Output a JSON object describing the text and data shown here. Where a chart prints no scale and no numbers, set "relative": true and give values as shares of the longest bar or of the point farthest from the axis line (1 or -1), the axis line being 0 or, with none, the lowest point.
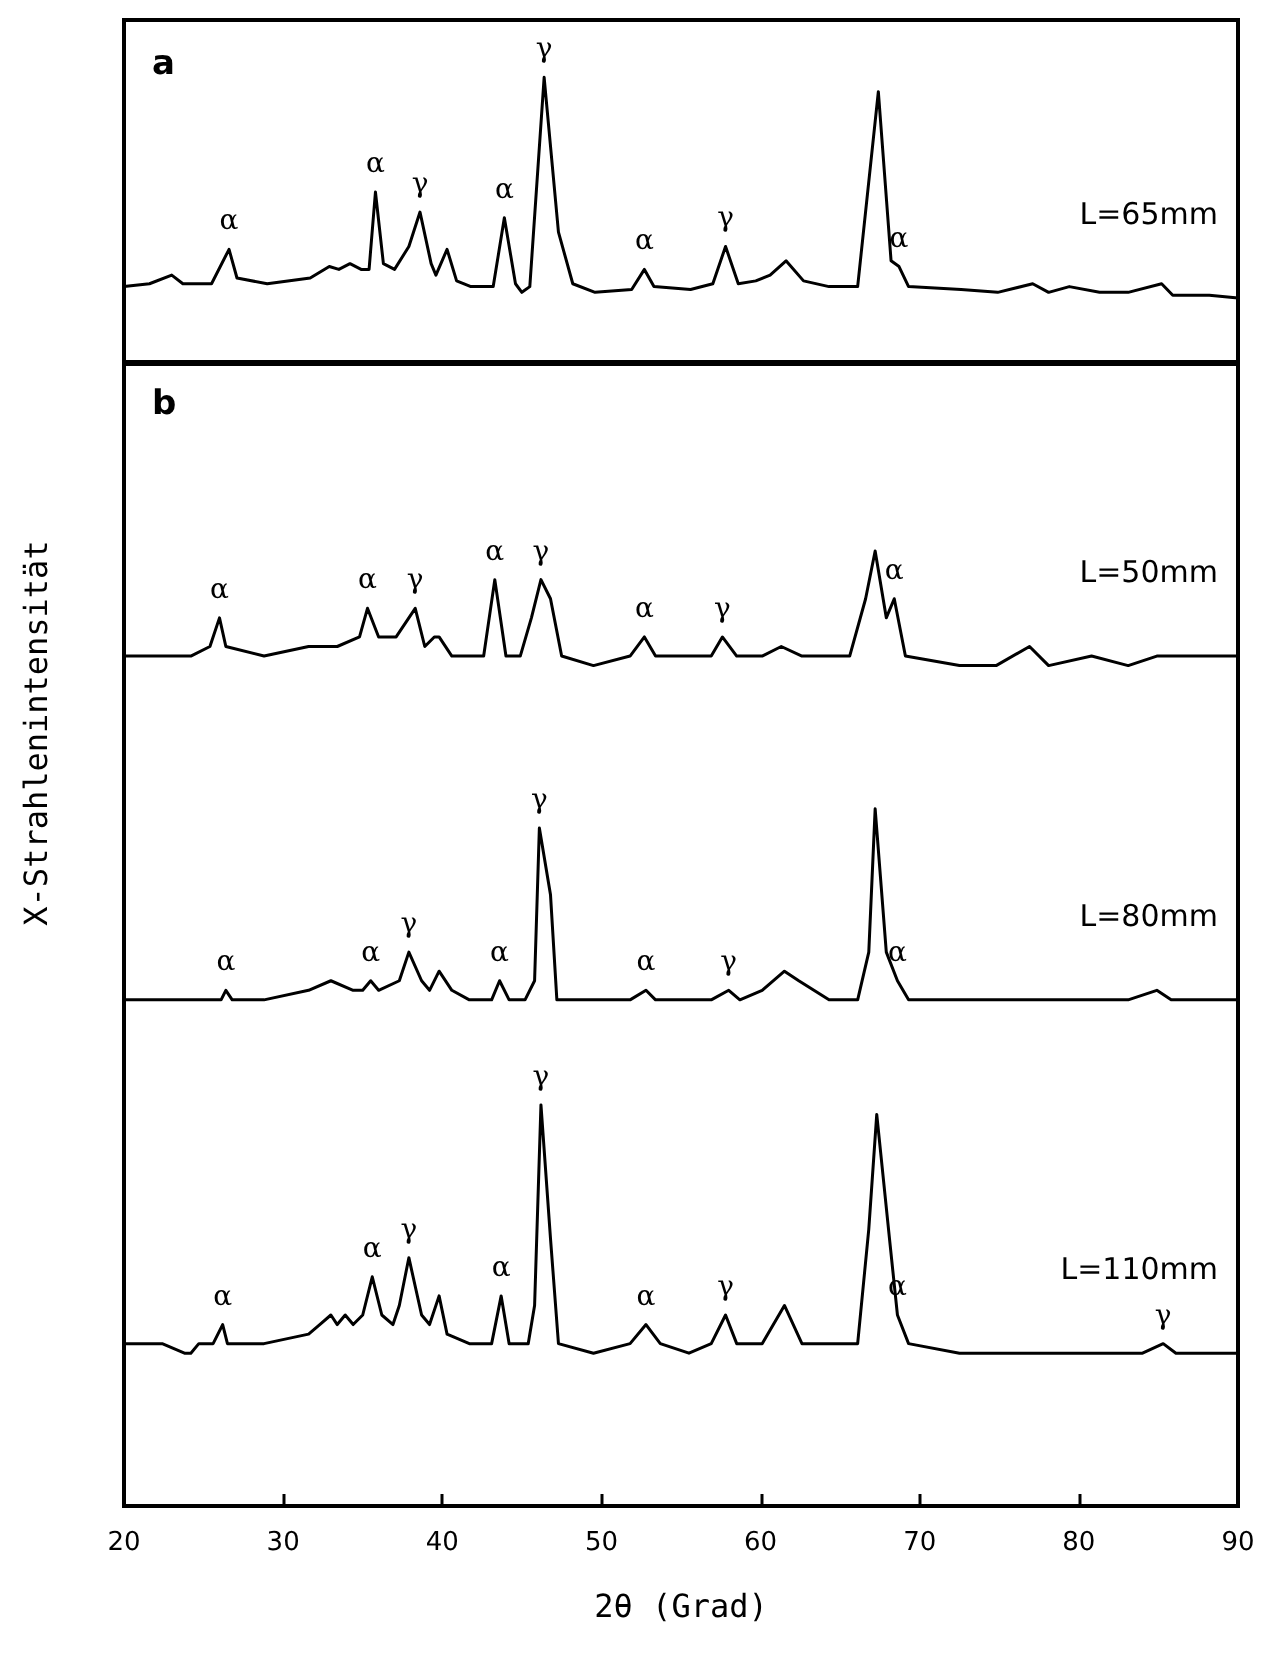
{
  "chart_data": [
    {
      "type": "line",
      "relative": true,
      "xlim": [
        20,
        90
      ],
      "tick_labels": false,
      "grid": false,
      "marker": "none",
      "line_style": "solid",
      "annotations": [
        "a",
        {
          "text": "α",
          "x": 26.6,
          "y": 0.4
        },
        {
          "text": "α",
          "x": 35.8,
          "y": 0.6
        },
        {
          "text": "γ",
          "x": 38.6,
          "y": 0.53
        },
        {
          "text": "α",
          "x": 43.9,
          "y": 0.51
        },
        {
          "text": "γ",
          "x": 46.4,
          "y": 1.0
        },
        {
          "text": "α",
          "x": 52.7,
          "y": 0.33
        },
        {
          "text": "γ",
          "x": 57.8,
          "y": 0.41
        },
        {
          "text": "α",
          "x": 68.7,
          "y": 0.34
        }
      ],
      "series": [
        {
          "name": "L=65mm",
          "color": "#000000",
          "x": [
            20.0,
            21.6,
            23.0,
            23.7,
            25.5,
            26.6,
            27.1,
            29.0,
            31.7,
            32.9,
            33.5,
            34.2,
            34.9,
            35.4,
            35.8,
            36.3,
            37.0,
            37.9,
            38.6,
            39.3,
            39.6,
            40.3,
            40.9,
            41.8,
            43.2,
            43.9,
            44.6,
            45.0,
            45.5,
            46.4,
            47.3,
            48.2,
            49.6,
            51.9,
            52.7,
            53.3,
            55.6,
            57.0,
            57.8,
            58.6,
            59.7,
            60.6,
            61.6,
            62.7,
            64.3,
            66.1,
            67.4,
            68.2,
            68.7,
            69.3,
            72.6,
            74.9,
            77.1,
            78.1,
            79.4,
            81.3,
            83.1,
            85.2,
            85.9,
            88.2,
            90.0
          ],
          "values": [
            0.27,
            0.28,
            0.31,
            0.28,
            0.28,
            0.4,
            0.3,
            0.28,
            0.3,
            0.34,
            0.33,
            0.35,
            0.33,
            0.33,
            0.6,
            0.35,
            0.33,
            0.41,
            0.53,
            0.35,
            0.31,
            0.4,
            0.29,
            0.27,
            0.27,
            0.51,
            0.28,
            0.25,
            0.27,
            1.0,
            0.46,
            0.28,
            0.25,
            0.26,
            0.33,
            0.27,
            0.26,
            0.28,
            0.41,
            0.28,
            0.29,
            0.31,
            0.36,
            0.29,
            0.27,
            0.27,
            0.95,
            0.36,
            0.34,
            0.27,
            0.26,
            0.25,
            0.28,
            0.25,
            0.27,
            0.25,
            0.25,
            0.28,
            0.24,
            0.24,
            0.23
          ]
        }
      ]
    },
    {
      "type": "line",
      "relative": true,
      "xlim": [
        20,
        90
      ],
      "xticks": [
        20,
        30,
        40,
        50,
        60,
        70,
        80,
        90
      ],
      "tick_labels": "x",
      "xlabel": "2θ (Grad)",
      "ylabel": "X-Strahlenintensität",
      "grid": false,
      "marker": "none",
      "line_style": "solid",
      "annotations": [
        "b",
        {
          "text": "α",
          "x": 26.0,
          "y": 0.93
        },
        {
          "text": "α",
          "x": 35.3,
          "y": 0.94
        },
        {
          "text": "γ",
          "x": 38.3,
          "y": 0.94
        },
        {
          "text": "α",
          "x": 43.3,
          "y": 0.97
        },
        {
          "text": "γ",
          "x": 46.2,
          "y": 0.97
        },
        {
          "text": "α",
          "x": 52.7,
          "y": 0.91
        },
        {
          "text": "γ",
          "x": 57.6,
          "y": 0.91
        },
        {
          "text": "α",
          "x": 68.4,
          "y": 0.95
        },
        {
          "text": "α",
          "x": 26.4,
          "y": 0.54
        },
        {
          "text": "α",
          "x": 35.5,
          "y": 0.55
        },
        {
          "text": "γ",
          "x": 37.9,
          "y": 0.58
        },
        {
          "text": "α",
          "x": 43.6,
          "y": 0.55
        },
        {
          "text": "γ",
          "x": 46.1,
          "y": 0.71
        },
        {
          "text": "α",
          "x": 52.8,
          "y": 0.54
        },
        {
          "text": "γ",
          "x": 58.0,
          "y": 0.54
        },
        {
          "text": "α",
          "x": 68.6,
          "y": 0.55
        },
        {
          "text": "α",
          "x": 26.2,
          "y": 0.19
        },
        {
          "text": "α",
          "x": 35.6,
          "y": 0.24
        },
        {
          "text": "γ",
          "x": 37.9,
          "y": 0.26
        },
        {
          "text": "α",
          "x": 43.7,
          "y": 0.22
        },
        {
          "text": "γ",
          "x": 46.2,
          "y": 0.42
        },
        {
          "text": "α",
          "x": 52.8,
          "y": 0.19
        },
        {
          "text": "γ",
          "x": 57.8,
          "y": 0.2
        },
        {
          "text": "α",
          "x": 68.6,
          "y": 0.2
        },
        {
          "text": "γ",
          "x": 85.3,
          "y": 0.17
        }
      ],
      "series": [
        {
          "name": "L=50mm",
          "color": "#000000",
          "x": [
            20.0,
            22.4,
            24.2,
            25.4,
            26.0,
            26.4,
            28.8,
            31.6,
            33.4,
            34.8,
            35.3,
            36.0,
            37.1,
            37.9,
            38.3,
            38.9,
            39.5,
            39.8,
            40.6,
            41.7,
            42.6,
            43.3,
            44.0,
            44.9,
            45.6,
            46.2,
            46.8,
            47.5,
            49.5,
            51.8,
            52.7,
            53.4,
            55.5,
            56.9,
            57.6,
            58.5,
            60.1,
            61.3,
            62.6,
            65.6,
            66.6,
            67.2,
            67.9,
            68.4,
            69.1,
            72.5,
            74.8,
            76.9,
            78.1,
            80.8,
            83.1,
            84.9,
            87.7,
            90.0
          ],
          "values": [
            0.89,
            0.89,
            0.89,
            0.9,
            0.93,
            0.9,
            0.89,
            0.9,
            0.9,
            0.91,
            0.94,
            0.91,
            0.91,
            0.93,
            0.94,
            0.9,
            0.91,
            0.91,
            0.89,
            0.89,
            0.89,
            0.97,
            0.89,
            0.89,
            0.93,
            0.97,
            0.95,
            0.89,
            0.88,
            0.89,
            0.91,
            0.89,
            0.89,
            0.89,
            0.91,
            0.89,
            0.89,
            0.9,
            0.89,
            0.89,
            0.95,
            1.0,
            0.93,
            0.95,
            0.89,
            0.88,
            0.88,
            0.9,
            0.88,
            0.89,
            0.88,
            0.89,
            0.89,
            0.89
          ]
        },
        {
          "name": "L=80mm",
          "color": "#000000",
          "x": [
            20.0,
            22.4,
            25.2,
            26.1,
            26.4,
            26.8,
            28.8,
            31.6,
            33.0,
            34.4,
            35.0,
            35.5,
            36.0,
            37.3,
            37.9,
            38.7,
            39.2,
            39.8,
            40.6,
            41.7,
            43.1,
            43.6,
            44.2,
            45.2,
            45.8,
            46.1,
            46.8,
            47.2,
            49.5,
            51.8,
            52.8,
            53.4,
            55.5,
            56.9,
            58.0,
            58.7,
            60.1,
            61.5,
            62.4,
            64.3,
            66.1,
            66.8,
            67.2,
            67.9,
            68.6,
            69.3,
            72.5,
            74.8,
            79.4,
            83.1,
            84.9,
            85.8,
            90.0
          ],
          "values": [
            0.53,
            0.53,
            0.53,
            0.53,
            0.54,
            0.53,
            0.53,
            0.54,
            0.55,
            0.54,
            0.54,
            0.55,
            0.54,
            0.55,
            0.58,
            0.55,
            0.54,
            0.56,
            0.54,
            0.53,
            0.53,
            0.55,
            0.53,
            0.53,
            0.55,
            0.71,
            0.64,
            0.53,
            0.53,
            0.53,
            0.54,
            0.53,
            0.53,
            0.53,
            0.54,
            0.53,
            0.54,
            0.56,
            0.55,
            0.53,
            0.53,
            0.58,
            0.73,
            0.58,
            0.55,
            0.53,
            0.53,
            0.53,
            0.53,
            0.53,
            0.54,
            0.53,
            0.53
          ]
        },
        {
          "name": "L=110mm",
          "color": "#000000",
          "x": [
            20.0,
            22.4,
            23.8,
            24.2,
            24.7,
            25.6,
            26.2,
            26.5,
            28.8,
            31.6,
            32.3,
            33.0,
            33.4,
            33.9,
            34.4,
            35.0,
            35.6,
            36.2,
            36.9,
            37.3,
            37.9,
            38.7,
            39.2,
            39.8,
            40.3,
            41.7,
            43.1,
            43.7,
            44.2,
            45.4,
            45.8,
            46.2,
            46.8,
            47.3,
            49.5,
            51.8,
            52.8,
            53.7,
            55.5,
            56.9,
            57.8,
            58.5,
            60.1,
            61.5,
            62.6,
            64.3,
            66.1,
            66.8,
            67.3,
            68.1,
            68.6,
            69.3,
            72.5,
            77.1,
            81.7,
            84.0,
            85.3,
            86.1,
            90.0
          ],
          "values": [
            0.17,
            0.17,
            0.16,
            0.16,
            0.17,
            0.17,
            0.19,
            0.17,
            0.17,
            0.18,
            0.19,
            0.2,
            0.19,
            0.2,
            0.19,
            0.2,
            0.24,
            0.2,
            0.19,
            0.21,
            0.26,
            0.2,
            0.19,
            0.22,
            0.18,
            0.17,
            0.17,
            0.22,
            0.17,
            0.17,
            0.21,
            0.42,
            0.28,
            0.17,
            0.16,
            0.17,
            0.19,
            0.17,
            0.16,
            0.17,
            0.2,
            0.17,
            0.17,
            0.21,
            0.17,
            0.17,
            0.17,
            0.29,
            0.41,
            0.28,
            0.2,
            0.17,
            0.16,
            0.16,
            0.16,
            0.16,
            0.17,
            0.16,
            0.16
          ]
        }
      ]
    }
  ]
}
